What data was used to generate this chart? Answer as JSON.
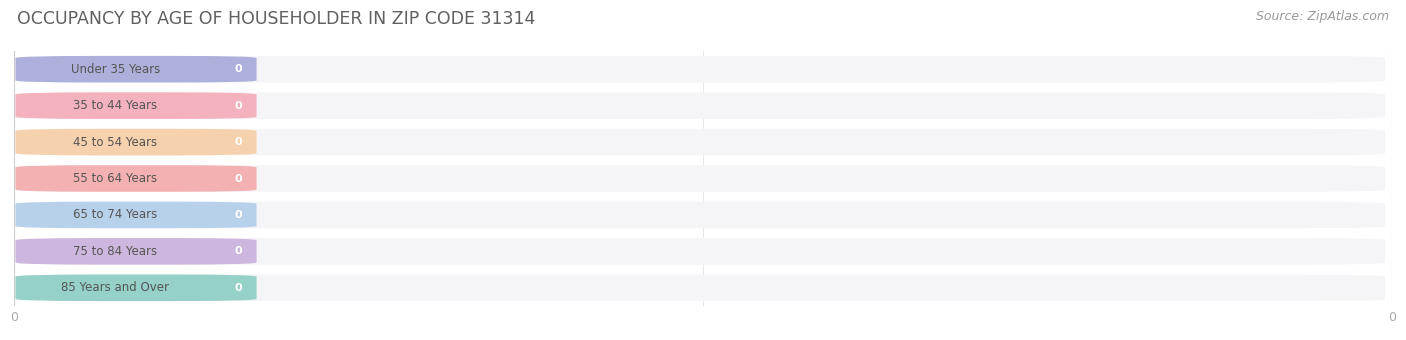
{
  "title": "OCCUPANCY BY AGE OF HOUSEHOLDER IN ZIP CODE 31314",
  "source": "Source: ZipAtlas.com",
  "categories": [
    "Under 35 Years",
    "35 to 44 Years",
    "45 to 54 Years",
    "55 to 64 Years",
    "65 to 74 Years",
    "75 to 84 Years",
    "85 Years and Over"
  ],
  "values": [
    0,
    0,
    0,
    0,
    0,
    0,
    0
  ],
  "bar_colors": [
    "#9b9fd4",
    "#f4a0b0",
    "#f5c99a",
    "#f4a0a0",
    "#a8c8e8",
    "#c4a8d8",
    "#7fc8bc"
  ],
  "row_colors": [
    "#f7f7fa",
    "#efefef"
  ],
  "title_color": "#606060",
  "source_color": "#999999",
  "label_color": "#555555",
  "value_color": "#ffffff",
  "tick_color": "#aaaaaa",
  "figsize": [
    14.06,
    3.4
  ],
  "dpi": 100
}
